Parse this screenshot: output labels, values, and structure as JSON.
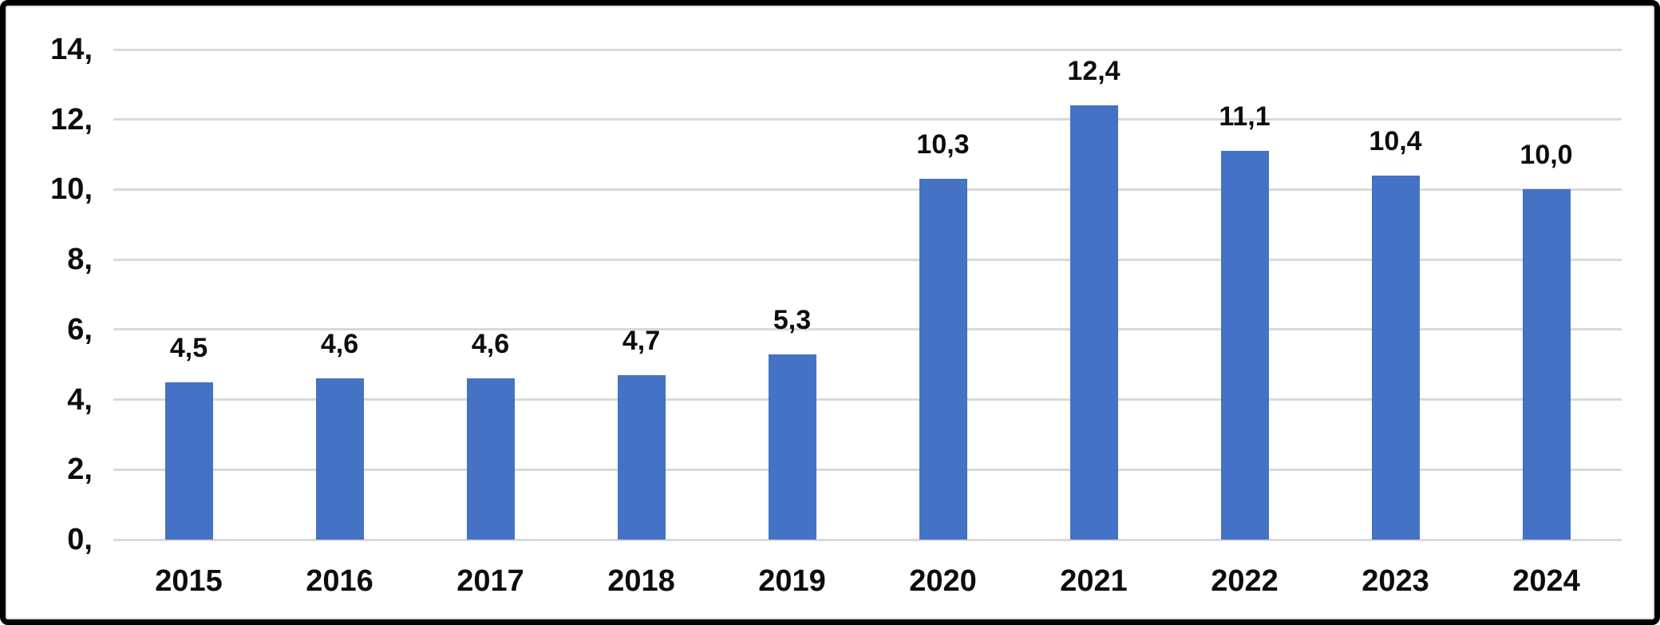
{
  "chart_data": {
    "type": "bar",
    "title": "",
    "xlabel": "",
    "ylabel": "",
    "categories": [
      "2015",
      "2016",
      "2017",
      "2018",
      "2019",
      "2020",
      "2021",
      "2022",
      "2023",
      "2024"
    ],
    "values": [
      4.5,
      4.6,
      4.6,
      4.7,
      5.3,
      10.3,
      12.4,
      11.1,
      10.4,
      10.0
    ],
    "data_labels": [
      "4,5",
      "4,6",
      "4,6",
      "4,7",
      "5,3",
      "10,3",
      "12,4",
      "11,1",
      "10,4",
      "10,0"
    ],
    "y_tick_values": [
      0,
      2,
      4,
      6,
      8,
      10,
      12,
      14
    ],
    "y_tick_labels": [
      "0,",
      "2,",
      "4,",
      "6,",
      "8,",
      "10,",
      "12,",
      "14,"
    ],
    "ylim": [
      0,
      14
    ],
    "grid": true,
    "legend": "none",
    "decimal_separator": ",",
    "colors": {
      "bar": "#4472c4",
      "gridline": "#d9d9d9",
      "text": "#0d0d0d",
      "frame_border": "#000000",
      "inner_border": "#e2e2e2",
      "background": "#ffffff"
    }
  }
}
